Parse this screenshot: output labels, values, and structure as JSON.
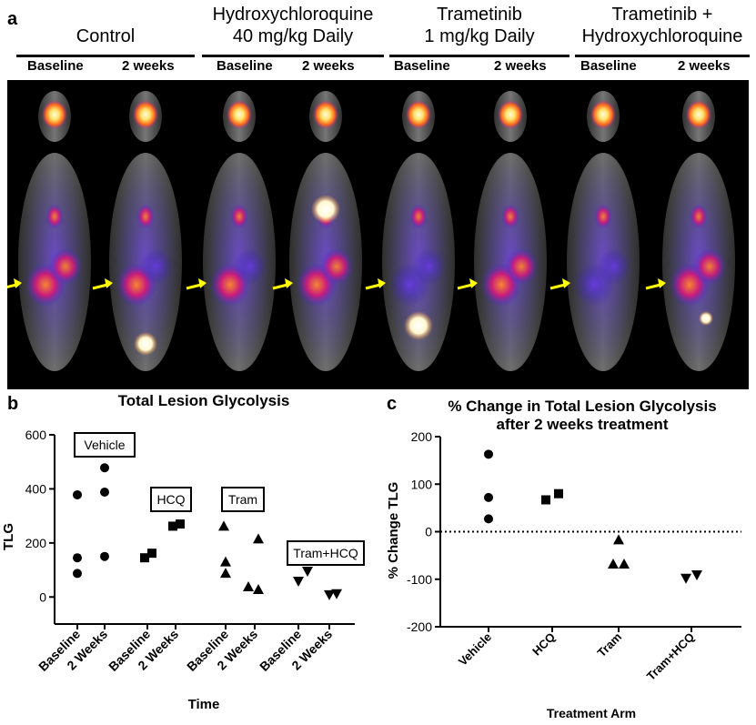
{
  "panel_a": {
    "letter": "a",
    "groups": [
      {
        "title_line1": "Control",
        "title_line2": ""
      },
      {
        "title_line1": "Hydroxychloroquine",
        "title_line2": "40 mg/kg Daily"
      },
      {
        "title_line1": "Trametinib",
        "title_line2": "1 mg/kg Daily"
      },
      {
        "title_line1": "Trametinib +",
        "title_line2": "Hydroxychloroquine"
      }
    ],
    "subheaders": [
      "Baseline",
      "2 weeks",
      "Baseline",
      "2 weeks",
      "Baseline",
      "2 weeks",
      "Baseline",
      "2 weeks"
    ]
  },
  "colors": {
    "pet_background": "#000000",
    "ct_gray": "#7a7a7a",
    "pet_blue": "#3a2ad8",
    "pet_magenta": "#c2189a",
    "pet_orange": "#ff7a1a",
    "pet_yellow": "#fff06a",
    "arrow": "#ffff00"
  },
  "chart_data": [
    {
      "panel": "b",
      "type": "scatter",
      "title": "Total Lesion Glycolysis",
      "ylabel": "TLG",
      "xlabel": "Time",
      "ylim": [
        -100,
        600
      ],
      "yticks": [
        0,
        200,
        400,
        600
      ],
      "categories": [
        "Baseline",
        "2 Weeks",
        "Baseline",
        "2 Weeks",
        "Baseline",
        "2 Weeks",
        "Baseline",
        "2 Weeks"
      ],
      "series": [
        {
          "name": "Vehicle",
          "marker": "circle",
          "points": [
            {
              "x": "Baseline",
              "y": 378
            },
            {
              "x": "Baseline",
              "y": 145
            },
            {
              "x": "Baseline",
              "y": 87
            },
            {
              "x": "2 Weeks",
              "y": 478
            },
            {
              "x": "2 Weeks",
              "y": 388
            },
            {
              "x": "2 Weeks",
              "y": 150
            }
          ]
        },
        {
          "name": "HCQ",
          "marker": "square",
          "points": [
            {
              "x": "Baseline",
              "y": 145
            },
            {
              "x": "Baseline",
              "y": 162
            },
            {
              "x": "2 Weeks",
              "y": 262
            },
            {
              "x": "2 Weeks",
              "y": 270
            }
          ]
        },
        {
          "name": "Tram",
          "marker": "triangle-up",
          "points": [
            {
              "x": "Baseline",
              "y": 262
            },
            {
              "x": "Baseline",
              "y": 130
            },
            {
              "x": "Baseline",
              "y": 88
            },
            {
              "x": "2 Weeks",
              "y": 215
            },
            {
              "x": "2 Weeks",
              "y": 38
            },
            {
              "x": "2 Weeks",
              "y": 28
            }
          ]
        },
        {
          "name": "Tram+HCQ",
          "marker": "triangle-down",
          "points": [
            {
              "x": "Baseline",
              "y": 58
            },
            {
              "x": "Baseline",
              "y": 95
            },
            {
              "x": "2 Weeks",
              "y": 8
            },
            {
              "x": "2 Weeks",
              "y": 12
            }
          ]
        }
      ],
      "annotations": [
        "Vehicle",
        "HCQ",
        "Tram",
        "Tram+HCQ"
      ]
    },
    {
      "panel": "c",
      "type": "scatter",
      "title_line1": "% Change in Total Lesion Glycolysis",
      "title_line2": "after 2 weeks treatment",
      "ylabel": "% Change TLG",
      "xlabel": "Treatment Arm",
      "ylim": [
        -200,
        200
      ],
      "yticks": [
        -200,
        -100,
        0,
        100,
        200
      ],
      "reference_line": 0,
      "categories": [
        "Vehicle",
        "HCQ",
        "Tram",
        "Tram+HCQ"
      ],
      "series": [
        {
          "name": "Vehicle",
          "marker": "circle",
          "values": [
            163,
            72,
            27
          ]
        },
        {
          "name": "HCQ",
          "marker": "square",
          "values": [
            67,
            80
          ]
        },
        {
          "name": "Tram",
          "marker": "triangle-up",
          "values": [
            -17,
            -68,
            -68
          ]
        },
        {
          "name": "Tram+HCQ",
          "marker": "triangle-down",
          "values": [
            -98,
            -91
          ]
        }
      ]
    }
  ]
}
